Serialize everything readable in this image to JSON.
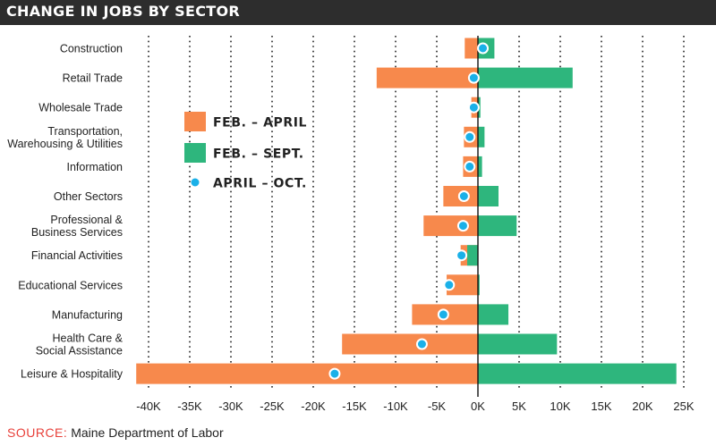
{
  "title": "CHANGE IN JOBS BY SECTOR",
  "source": {
    "label": "SOURCE:",
    "text": "Maine Department of Labor"
  },
  "colors": {
    "feb_april": "#f7894c",
    "feb_sept": "#2eb67d",
    "april_oct": "#1ab0e8",
    "grid": "#222222",
    "title_bg": "#2d2d2d"
  },
  "chart_data": {
    "type": "bar",
    "orientation": "horizontal",
    "title": "CHANGE IN JOBS BY SECTOR",
    "categories": [
      [
        "Construction"
      ],
      [
        "Retail Trade"
      ],
      [
        "Wholesale Trade"
      ],
      [
        "Transportation,",
        "Warehousing & Utilities"
      ],
      [
        "Information"
      ],
      [
        "Other Sectors"
      ],
      [
        "Professional &",
        "Business Services"
      ],
      [
        "Financial Activities"
      ],
      [
        "Educational Services"
      ],
      [
        "Manufacturing"
      ],
      [
        "Health Care &",
        "Social Assistance"
      ],
      [
        "Leisure & Hospitality"
      ]
    ],
    "series": [
      {
        "name": "FEB. – APRIL",
        "kind": "bar",
        "color": "#f7894c",
        "values": [
          -1600,
          -12300,
          -800,
          -1700,
          -1800,
          -4200,
          -6600,
          -2100,
          -3800,
          -8000,
          -16500,
          -41500
        ]
      },
      {
        "name": "FEB. – SEPT.",
        "kind": "bar",
        "color": "#2eb67d",
        "values": [
          2000,
          11500,
          300,
          800,
          500,
          2500,
          4700,
          -1300,
          200,
          3700,
          9600,
          24100
        ]
      },
      {
        "name": "APRIL – OCT.",
        "kind": "dot",
        "color": "#1ab0e8",
        "values": [
          600,
          -500,
          -500,
          -1000,
          -1000,
          -1700,
          -1800,
          -2000,
          -3500,
          -4200,
          -6800,
          -17400
        ]
      }
    ],
    "x_ticks": [
      "-40K",
      "-35K",
      "-30K",
      "-25K",
      "-20K",
      "-15K",
      "-10K",
      "-5K",
      "0K",
      "5K",
      "10K",
      "15K",
      "20K",
      "25K"
    ],
    "x_tick_values": [
      -40000,
      -35000,
      -30000,
      -25000,
      -20000,
      -15000,
      -10000,
      -5000,
      0,
      5000,
      10000,
      15000,
      20000,
      25000
    ],
    "xlim": [
      -41500,
      25000
    ],
    "grid": "vertical-dotted",
    "legend_position": "upper-left-inside"
  }
}
